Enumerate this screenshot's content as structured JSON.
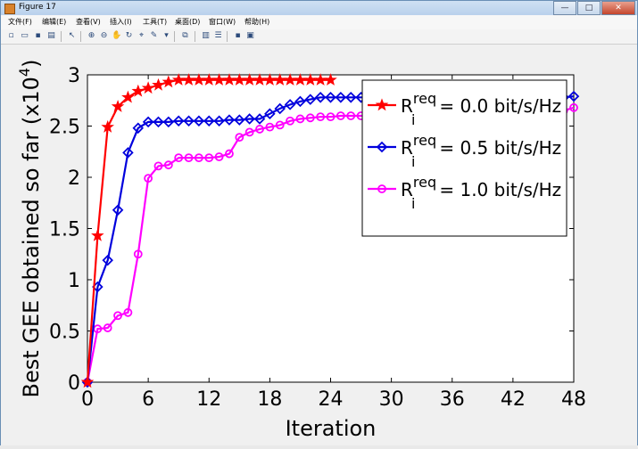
{
  "window": {
    "title": "Figure 17"
  },
  "menu": [
    "文件(F)",
    "编辑(E)",
    "查看(V)",
    "插入(I)",
    "工具(T)",
    "桌面(D)",
    "窗口(W)",
    "帮助(H)"
  ],
  "toolbar_icons": [
    "new-figure-icon",
    "open-file-icon",
    "save-icon",
    "print-icon",
    "edit-plot-icon",
    "zoom-in-icon",
    "zoom-out-icon",
    "pan-icon",
    "rotate-icon",
    "data-cursor-icon",
    "brush-icon",
    "link-icon",
    "insert-colorbar-icon",
    "insert-legend-icon",
    "hide-tools-icon",
    "show-tools-icon"
  ],
  "chart_data": {
    "type": "line",
    "xlabel": "Iteration",
    "ylabel": "Best GEE obtained so far (x10",
    "ylabel_exp": "4",
    "ylabel_close": ")",
    "xlim": [
      0,
      48
    ],
    "ylim": [
      0,
      3
    ],
    "xticks": [
      "0",
      "6",
      "12",
      "18",
      "24",
      "30",
      "36",
      "42",
      "48"
    ],
    "yticks": [
      "0",
      "0.5",
      "1",
      "1.5",
      "2",
      "2.5",
      "3"
    ],
    "legend_placement": "top-right",
    "series": [
      {
        "name_prefix": "R",
        "name_sub": "i",
        "name_sup": "req",
        "name_suffix": " = 0.0 bit/s/Hz",
        "color": "#ff0000",
        "marker": "star",
        "x": [
          0,
          1,
          2,
          3,
          4,
          5,
          6,
          7,
          8,
          9,
          10,
          11,
          12,
          13,
          14,
          15,
          16,
          17,
          18,
          19,
          20,
          21,
          22,
          23,
          24
        ],
        "y": [
          0.0,
          1.43,
          2.49,
          2.69,
          2.78,
          2.84,
          2.87,
          2.9,
          2.93,
          2.95,
          2.95,
          2.95,
          2.95,
          2.95,
          2.95,
          2.95,
          2.95,
          2.95,
          2.95,
          2.95,
          2.95,
          2.95,
          2.95,
          2.95,
          2.95
        ]
      },
      {
        "name_prefix": "R",
        "name_sub": "i",
        "name_sup": "req",
        "name_suffix": " = 0.5 bit/s/Hz",
        "color": "#0000dd",
        "marker": "diamond",
        "x": [
          0,
          1,
          2,
          3,
          4,
          5,
          6,
          7,
          8,
          9,
          10,
          11,
          12,
          13,
          14,
          15,
          16,
          17,
          18,
          19,
          20,
          21,
          22,
          23,
          24,
          25,
          26,
          27,
          28,
          29,
          30,
          31,
          32,
          33,
          34,
          35,
          36,
          37,
          38,
          39,
          40,
          41,
          42,
          43,
          44,
          45,
          46,
          47,
          48
        ],
        "y": [
          0.0,
          0.93,
          1.19,
          1.68,
          2.24,
          2.48,
          2.54,
          2.54,
          2.54,
          2.55,
          2.55,
          2.55,
          2.55,
          2.55,
          2.56,
          2.56,
          2.57,
          2.57,
          2.62,
          2.67,
          2.71,
          2.74,
          2.76,
          2.78,
          2.78,
          2.78,
          2.78,
          2.78,
          2.78,
          2.78,
          2.78,
          2.78,
          2.78,
          2.78,
          2.78,
          2.78,
          2.78,
          2.78,
          2.78,
          2.78,
          2.78,
          2.78,
          2.78,
          2.78,
          2.78,
          2.78,
          2.78,
          2.78,
          2.79
        ]
      },
      {
        "name_prefix": "R",
        "name_sub": "i",
        "name_sup": "req",
        "name_suffix": " = 1.0 bit/s/Hz",
        "color": "#ff00ff",
        "marker": "circle",
        "x": [
          0,
          1,
          2,
          3,
          4,
          5,
          6,
          7,
          8,
          9,
          10,
          11,
          12,
          13,
          14,
          15,
          16,
          17,
          18,
          19,
          20,
          21,
          22,
          23,
          24,
          25,
          26,
          27,
          28,
          29,
          30,
          31,
          32,
          33,
          34,
          35,
          36,
          37,
          38,
          39,
          40,
          41,
          42,
          43,
          44,
          45,
          46,
          47,
          48
        ],
        "y": [
          0.0,
          0.52,
          0.53,
          0.65,
          0.68,
          1.25,
          1.99,
          2.11,
          2.12,
          2.19,
          2.19,
          2.19,
          2.19,
          2.2,
          2.23,
          2.39,
          2.44,
          2.47,
          2.49,
          2.51,
          2.55,
          2.57,
          2.58,
          2.59,
          2.59,
          2.6,
          2.6,
          2.6,
          2.61,
          2.61,
          2.61,
          2.61,
          2.62,
          2.62,
          2.62,
          2.62,
          2.62,
          2.62,
          2.62,
          2.63,
          2.63,
          2.63,
          2.63,
          2.63,
          2.63,
          2.64,
          2.64,
          2.65,
          2.68
        ]
      }
    ]
  }
}
